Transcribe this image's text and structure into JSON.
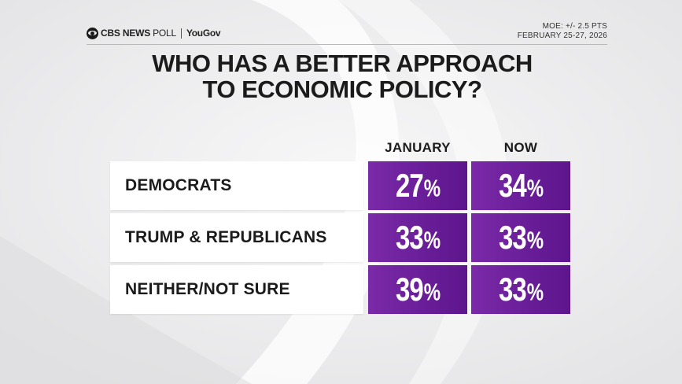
{
  "header": {
    "brand_cbs": "CBS NEWS",
    "brand_poll": "POLL",
    "brand_partner": "YouGov",
    "moe": "MOE: +/- 2.5 PTS",
    "dates": "FEBRUARY 25-27, 2026"
  },
  "colors": {
    "cell_purple": "#6b1f9a",
    "background": "#eeeeef"
  },
  "chart_data": {
    "type": "table",
    "title": "WHO HAS A BETTER APPROACH TO ECONOMIC POLICY?",
    "title_lines": [
      "WHO HAS A BETTER APPROACH",
      "TO ECONOMIC POLICY?"
    ],
    "columns": [
      "JANUARY",
      "NOW"
    ],
    "rows": [
      {
        "label": "DEMOCRATS",
        "values": [
          27,
          34
        ]
      },
      {
        "label": "TRUMP & REPUBLICANS",
        "values": [
          33,
          33
        ]
      },
      {
        "label": "NEITHER/NOT SURE",
        "values": [
          39,
          33
        ]
      }
    ],
    "unit": "%"
  }
}
